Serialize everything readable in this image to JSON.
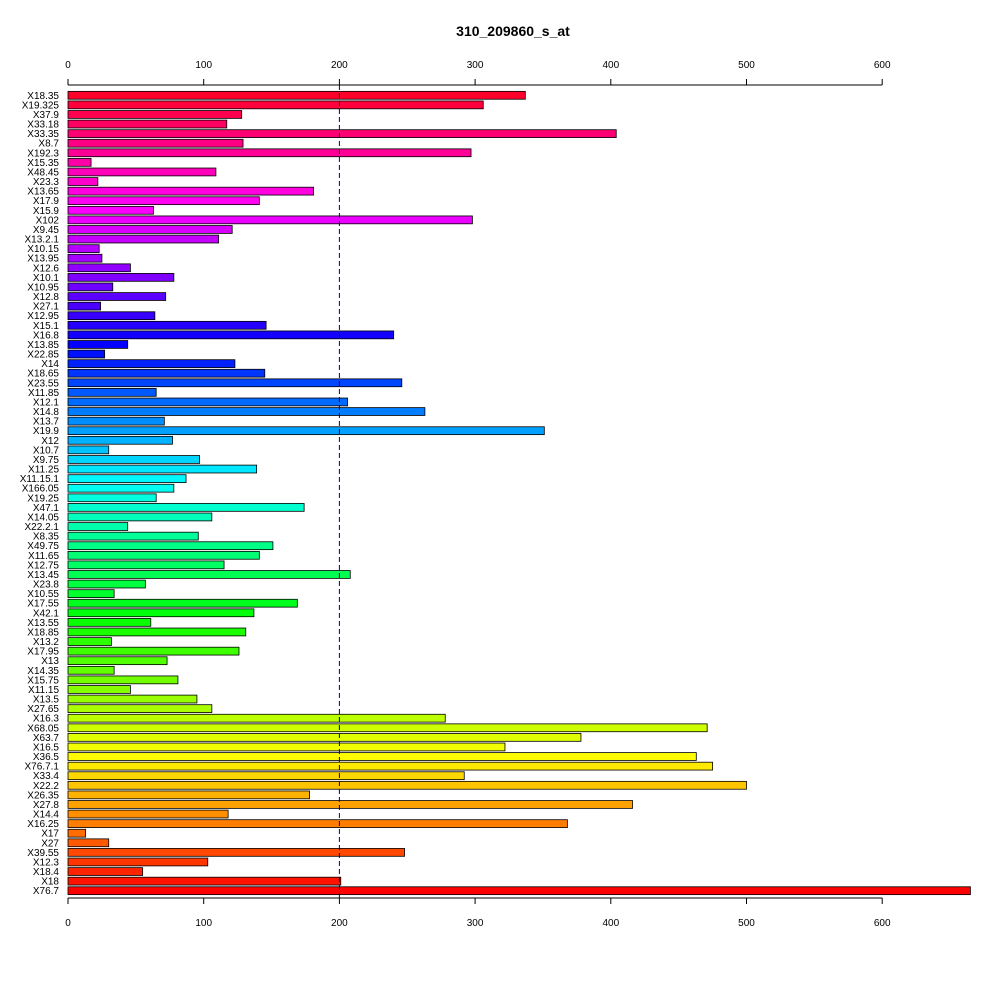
{
  "chart_data": {
    "type": "bar",
    "orientation": "horizontal",
    "title": "310_209860_s_at",
    "xlabel": "",
    "ylabel": "",
    "xlim": [
      0,
      665
    ],
    "xticks": [
      0,
      100,
      200,
      300,
      400,
      500,
      600
    ],
    "reference_line": 200,
    "grid": false,
    "legend": "none",
    "categories": [
      "X18.35",
      "X19.325",
      "X37.9",
      "X33.18",
      "X33.35",
      "X8.7",
      "X192.3",
      "X15.35",
      "X48.45",
      "X23.3",
      "X13.65",
      "X17.9",
      "X15.9",
      "X102",
      "X9.45",
      "X13.2.1",
      "X10.15",
      "X13.95",
      "X12.6",
      "X10.1",
      "X10.95",
      "X12.8",
      "X27.1",
      "X12.95",
      "X15.1",
      "X16.8",
      "X13.85",
      "X22.85",
      "X14",
      "X18.65",
      "X23.55",
      "X11.85",
      "X12.1",
      "X14.8",
      "X13.7",
      "X19.9",
      "X12",
      "X10.7",
      "X9.75",
      "X11.25",
      "X11.15.1",
      "X166.05",
      "X19.25",
      "X47.1",
      "X14.05",
      "X22.2.1",
      "X8.35",
      "X49.75",
      "X11.65",
      "X12.75",
      "X13.45",
      "X23.8",
      "X10.55",
      "X17.55",
      "X42.1",
      "X13.55",
      "X18.85",
      "X13.2",
      "X17.95",
      "X13",
      "X14.35",
      "X15.75",
      "X11.15",
      "X13.5",
      "X27.65",
      "X16.3",
      "X68.05",
      "X63.7",
      "X16.5",
      "X36.5",
      "X76.7.1",
      "X33.4",
      "X22.2",
      "X26.35",
      "X27.8",
      "X14.4",
      "X16.25",
      "X17",
      "X27",
      "X39.55",
      "X12.3",
      "X18.4",
      "X18",
      "X76.7"
    ],
    "values": [
      337,
      306,
      128,
      117,
      404,
      129,
      297,
      17,
      109,
      22,
      181,
      141,
      63,
      298,
      121,
      111,
      23,
      25,
      46,
      78,
      33,
      72,
      24,
      64,
      146,
      240,
      44,
      27,
      123,
      145,
      246,
      65,
      206,
      263,
      71,
      351,
      77,
      30,
      97,
      139,
      87,
      78,
      65,
      174,
      106,
      44,
      96,
      151,
      141,
      115,
      208,
      57,
      34,
      169,
      137,
      61,
      131,
      32,
      126,
      73,
      34,
      81,
      46,
      95,
      106,
      278,
      471,
      378,
      322,
      463,
      475,
      292,
      500,
      178,
      416,
      118,
      368,
      13,
      30,
      248,
      103,
      55,
      201,
      665
    ]
  }
}
